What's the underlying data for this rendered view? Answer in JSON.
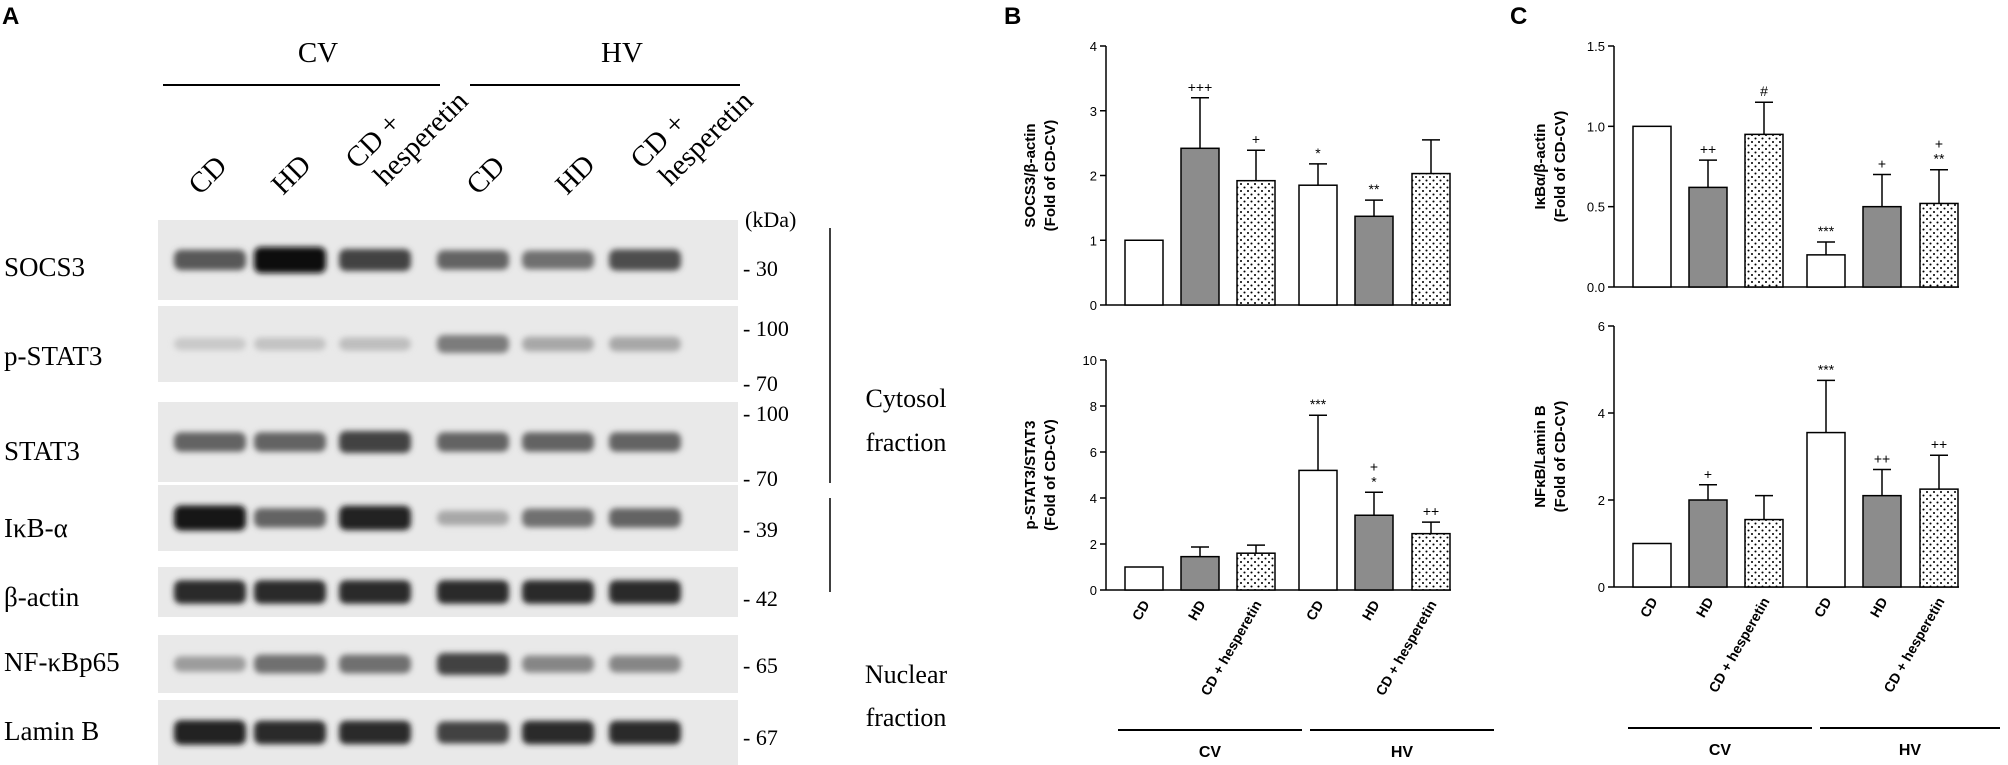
{
  "panel_letters": {
    "a": "A",
    "b": "B",
    "c": "C"
  },
  "blot": {
    "groups": [
      "CV",
      "HV"
    ],
    "lane_labels": [
      {
        "lines": [
          "CD"
        ]
      },
      {
        "lines": [
          "HD"
        ]
      },
      {
        "lines": [
          "CD +",
          "hesperetin"
        ]
      },
      {
        "lines": [
          "CD"
        ]
      },
      {
        "lines": [
          "HD"
        ]
      },
      {
        "lines": [
          "CD +",
          "hesperetin"
        ]
      }
    ],
    "kda_header": "(kDa)",
    "strips": [
      {
        "protein": "SOCS3",
        "markers": [
          "- 30"
        ],
        "intensity": [
          0.65,
          1.0,
          0.75,
          0.6,
          0.55,
          0.7
        ]
      },
      {
        "protein": "p-STAT3",
        "markers": [
          "- 100",
          "- 70"
        ],
        "intensity": [
          0.15,
          0.18,
          0.2,
          0.5,
          0.3,
          0.3
        ]
      },
      {
        "protein": "STAT3",
        "markers": [
          "- 100",
          "- 70"
        ],
        "intensity": [
          0.6,
          0.6,
          0.75,
          0.6,
          0.6,
          0.6
        ]
      },
      {
        "protein": "IκB-α",
        "markers": [
          "- 39"
        ],
        "intensity": [
          0.95,
          0.6,
          0.9,
          0.3,
          0.55,
          0.6
        ]
      },
      {
        "protein": "β-actin",
        "markers": [
          "- 42"
        ],
        "intensity": [
          0.85,
          0.85,
          0.85,
          0.85,
          0.85,
          0.85
        ]
      },
      {
        "protein": "NF-κBp65",
        "markers": [
          "- 65"
        ],
        "intensity": [
          0.35,
          0.55,
          0.55,
          0.75,
          0.45,
          0.45
        ]
      },
      {
        "protein": "Lamin B",
        "markers": [
          "- 67"
        ],
        "intensity": [
          0.9,
          0.85,
          0.85,
          0.75,
          0.85,
          0.85
        ]
      }
    ],
    "fractions": {
      "cytosol": [
        "Cytosol",
        "fraction"
      ],
      "nuclear": [
        "Nuclear",
        "fraction"
      ]
    }
  },
  "chart_data": [
    {
      "type": "bar",
      "panel": "B-top",
      "ylabel": "SOCS3/β-actin",
      "ylabel2": "(Fold of CD-CV)",
      "ylim": [
        0,
        4
      ],
      "yticks": [
        "0",
        "1",
        "2",
        "3",
        "4"
      ],
      "values": [
        1.0,
        2.42,
        1.92,
        1.85,
        1.37,
        2.03
      ],
      "errors": [
        0,
        0.78,
        0.47,
        0.33,
        0.25,
        0.52
      ],
      "annotations": [
        "",
        "+++",
        "+",
        "*",
        "**",
        ""
      ]
    },
    {
      "type": "bar",
      "panel": "B-bottom",
      "ylabel": "p-STAT3/STAT3",
      "ylabel2": "(Fold of CD-CV)",
      "ylim": [
        0,
        10
      ],
      "yticks": [
        "0",
        "2",
        "4",
        "6",
        "8",
        "10"
      ],
      "values": [
        1.0,
        1.45,
        1.6,
        5.2,
        3.25,
        2.45
      ],
      "errors": [
        0,
        0.42,
        0.35,
        2.4,
        1.0,
        0.5
      ],
      "annotations": [
        "",
        "",
        "",
        "***",
        "+|*",
        "++"
      ]
    },
    {
      "type": "bar",
      "panel": "C-top",
      "ylabel": "IκBα/β-actin",
      "ylabel2": "(Fold of CD-CV)",
      "ylim": [
        0,
        1.5
      ],
      "yticks": [
        "0.0",
        "0.5",
        "1.0",
        "1.5"
      ],
      "values": [
        1.0,
        0.62,
        0.95,
        0.2,
        0.5,
        0.52
      ],
      "errors": [
        0,
        0.17,
        0.2,
        0.08,
        0.2,
        0.21
      ],
      "annotations": [
        "",
        "++",
        "#",
        "***",
        "+",
        "+|**"
      ]
    },
    {
      "type": "bar",
      "panel": "C-bottom",
      "ylabel": "NFκB/Lamin B",
      "ylabel2": "(Fold of CD-CV)",
      "ylim": [
        0,
        6
      ],
      "yticks": [
        "0",
        "2",
        "4",
        "6"
      ],
      "values": [
        1.0,
        2.0,
        1.55,
        3.55,
        2.1,
        2.25
      ],
      "errors": [
        0,
        0.35,
        0.55,
        1.2,
        0.6,
        0.78
      ],
      "annotations": [
        "",
        "+",
        "",
        "***",
        "++",
        "++"
      ]
    }
  ],
  "bar_categories": [
    "CD",
    "HD",
    "CD + hesperetin",
    "CD",
    "HD",
    "CD + hesperetin"
  ],
  "bar_fills": [
    "open",
    "gray",
    "dotted",
    "open",
    "gray",
    "dotted"
  ],
  "bar_groups": [
    "CV",
    "HV"
  ],
  "colors": {
    "gray_bar": "#8c8c8c",
    "ink": "#000000"
  }
}
